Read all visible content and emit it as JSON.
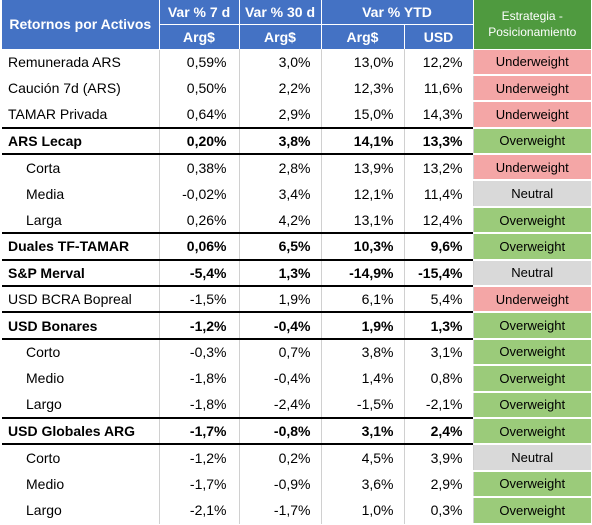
{
  "header": {
    "lead_label": "Retornos por Activos",
    "groups": [
      "Var % 7 d",
      "Var % 30 d",
      "Var % YTD"
    ],
    "currencies": [
      "Arg$",
      "Arg$",
      "Arg$",
      "USD"
    ],
    "strategy_label": "Estrategia - Posicionamiento"
  },
  "colors": {
    "header_blue": "#4472c4",
    "header_green": "#4f9a3f",
    "underweight": "#f4a6a6",
    "overweight": "#9bcb7a",
    "neutral": "#d9d9d9"
  },
  "rows": [
    {
      "label": "Remunerada ARS",
      "v7": "0,59%",
      "v30": "3,0%",
      "ytd_ars": "13,0%",
      "ytd_usd": "12,2%",
      "position": "Underweight",
      "kind": "uw",
      "bold": false,
      "sub": false,
      "sep": false
    },
    {
      "label": "Caución 7d (ARS)",
      "v7": "0,50%",
      "v30": "2,2%",
      "ytd_ars": "12,3%",
      "ytd_usd": "11,6%",
      "position": "Underweight",
      "kind": "uw",
      "bold": false,
      "sub": false,
      "sep": false
    },
    {
      "label": "TAMAR Privada",
      "v7": "0,64%",
      "v30": "2,9%",
      "ytd_ars": "15,0%",
      "ytd_usd": "14,3%",
      "position": "Underweight",
      "kind": "uw",
      "bold": false,
      "sub": false,
      "sep": false
    },
    {
      "label": "ARS Lecap",
      "v7": "0,20%",
      "v30": "3,8%",
      "ytd_ars": "14,1%",
      "ytd_usd": "13,3%",
      "position": "Overweight",
      "kind": "ow",
      "bold": true,
      "sub": false,
      "sep": true
    },
    {
      "label": "Corta",
      "v7": "0,38%",
      "v30": "2,8%",
      "ytd_ars": "13,9%",
      "ytd_usd": "13,2%",
      "position": "Underweight",
      "kind": "uw",
      "bold": false,
      "sub": true,
      "sep": true
    },
    {
      "label": "Media",
      "v7": "-0,02%",
      "v30": "3,4%",
      "ytd_ars": "12,1%",
      "ytd_usd": "11,4%",
      "position": "Neutral",
      "kind": "nt",
      "bold": false,
      "sub": true,
      "sep": false
    },
    {
      "label": "Larga",
      "v7": "0,26%",
      "v30": "4,2%",
      "ytd_ars": "13,1%",
      "ytd_usd": "12,4%",
      "position": "Overweight",
      "kind": "ow",
      "bold": false,
      "sub": true,
      "sep": false
    },
    {
      "label": "Duales TF-TAMAR",
      "v7": "0,06%",
      "v30": "6,5%",
      "ytd_ars": "10,3%",
      "ytd_usd": "9,6%",
      "position": "Overweight",
      "kind": "ow",
      "bold": true,
      "sub": false,
      "sep": true
    },
    {
      "label": "S&P Merval",
      "v7": "-5,4%",
      "v30": "1,3%",
      "ytd_ars": "-14,9%",
      "ytd_usd": "-15,4%",
      "position": "Neutral",
      "kind": "nt",
      "bold": true,
      "sub": false,
      "sep": true
    },
    {
      "label": "USD BCRA Bopreal",
      "v7": "-1,5%",
      "v30": "1,9%",
      "ytd_ars": "6,1%",
      "ytd_usd": "5,4%",
      "position": "Underweight",
      "kind": "uw",
      "bold": false,
      "sub": false,
      "sep": true
    },
    {
      "label": "USD Bonares",
      "v7": "-1,2%",
      "v30": "-0,4%",
      "ytd_ars": "1,9%",
      "ytd_usd": "1,3%",
      "position": "Overweight",
      "kind": "ow",
      "bold": true,
      "sub": false,
      "sep": true
    },
    {
      "label": "Corto",
      "v7": "-0,3%",
      "v30": "0,7%",
      "ytd_ars": "3,8%",
      "ytd_usd": "3,1%",
      "position": "Overweight",
      "kind": "ow",
      "bold": false,
      "sub": true,
      "sep": true
    },
    {
      "label": "Medio",
      "v7": "-1,8%",
      "v30": "-0,4%",
      "ytd_ars": "1,4%",
      "ytd_usd": "0,8%",
      "position": "Overweight",
      "kind": "ow",
      "bold": false,
      "sub": true,
      "sep": false
    },
    {
      "label": "Largo",
      "v7": "-1,8%",
      "v30": "-2,4%",
      "ytd_ars": "-1,5%",
      "ytd_usd": "-2,1%",
      "position": "Overweight",
      "kind": "ow",
      "bold": false,
      "sub": true,
      "sep": false
    },
    {
      "label": "USD Globales ARG",
      "v7": "-1,7%",
      "v30": "-0,8%",
      "ytd_ars": "3,1%",
      "ytd_usd": "2,4%",
      "position": "Overweight",
      "kind": "ow",
      "bold": true,
      "sub": false,
      "sep": true
    },
    {
      "label": "Corto",
      "v7": "-1,2%",
      "v30": "0,2%",
      "ytd_ars": "4,5%",
      "ytd_usd": "3,9%",
      "position": "Neutral",
      "kind": "nt",
      "bold": false,
      "sub": true,
      "sep": true
    },
    {
      "label": "Medio",
      "v7": "-1,7%",
      "v30": "-0,9%",
      "ytd_ars": "3,6%",
      "ytd_usd": "2,9%",
      "position": "Overweight",
      "kind": "ow",
      "bold": false,
      "sub": true,
      "sep": false
    },
    {
      "label": "Largo",
      "v7": "-2,1%",
      "v30": "-1,7%",
      "ytd_ars": "1,0%",
      "ytd_usd": "0,3%",
      "position": "Overweight",
      "kind": "ow",
      "bold": false,
      "sub": true,
      "sep": false
    }
  ]
}
